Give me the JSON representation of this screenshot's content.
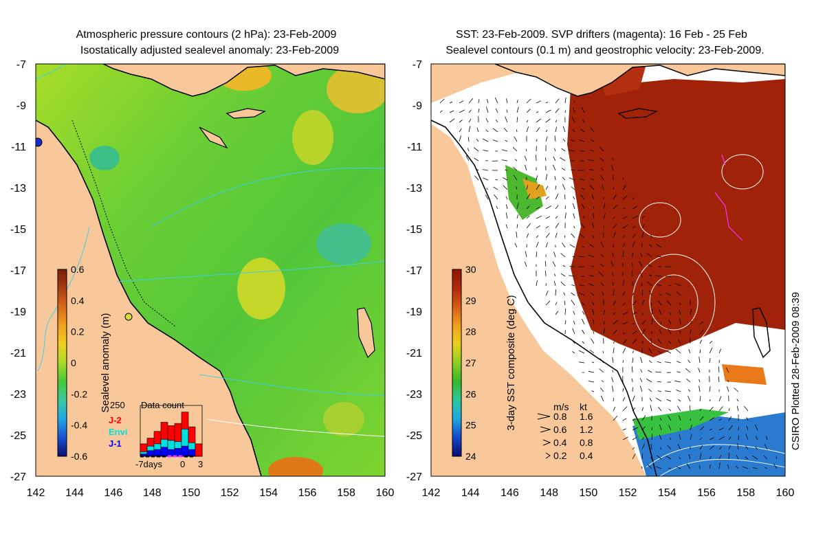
{
  "left_panel": {
    "title_line1": "Atmospheric pressure contours (2 hPa): 23-Feb-2009",
    "title_line2": "Isostatically adjusted sealevel anomaly: 23-Feb-2009",
    "colorbar": {
      "label": "Sealevel anomaly (m)",
      "ticks": [
        "0.6",
        "0.4",
        "0.2",
        "0",
        "-0.2",
        "-0.4",
        "-0.6"
      ],
      "colors": [
        "#08106e",
        "#1a4fd0",
        "#20a8e8",
        "#3cc8a0",
        "#46c83a",
        "#a8dc28",
        "#f0d020",
        "#f0a020",
        "#d86a1a",
        "#a83c10",
        "#7a1e08"
      ]
    },
    "inset": {
      "title": "Data count",
      "ymax_label": "250",
      "x_left": "-7days",
      "x_mid": "0",
      "x_right": "3",
      "legend": [
        {
          "label": "J-2",
          "color": "#ff0000"
        },
        {
          "label": "Envi",
          "color": "#00e0e0"
        },
        {
          "label": "J-1",
          "color": "#0000ff"
        }
      ],
      "counts": [
        {
          "red": 55,
          "cyan": 20,
          "blue": 10
        },
        {
          "red": 80,
          "cyan": 45,
          "blue": 25
        },
        {
          "red": 110,
          "cyan": 55,
          "blue": 30
        },
        {
          "red": 150,
          "cyan": 75,
          "blue": 40
        },
        {
          "red": 135,
          "cyan": 70,
          "blue": 30
        },
        {
          "red": 145,
          "cyan": 65,
          "blue": 35
        },
        {
          "red": 195,
          "cyan": 120,
          "blue": 45
        },
        {
          "red": 130,
          "cyan": 60,
          "blue": 30
        },
        {
          "red": 55,
          "cyan": 0,
          "blue": 0
        }
      ]
    }
  },
  "right_panel": {
    "title_line1": "SST: 23-Feb-2009. SVP drifters (magenta): 16 Feb - 25 Feb",
    "title_line2": "Sealevel contours (0.1 m) and geostrophic velocity: 23-Feb-2009.",
    "colorbar": {
      "label": "3-day SST composite (deg C)",
      "ticks": [
        "30",
        "29",
        "28",
        "27",
        "26",
        "25",
        "24"
      ],
      "colors": [
        "#0a0a70",
        "#1446c8",
        "#1ea8e0",
        "#2cc8a0",
        "#36b828",
        "#8ad020",
        "#e8d020",
        "#f0a020",
        "#d85a14",
        "#b02a0a",
        "#8c1404"
      ]
    },
    "speed_legend": {
      "header_ms": "m/s",
      "header_kt": "kt",
      "rows": [
        {
          "ms": "0.8",
          "kt": "1.6"
        },
        {
          "ms": "0.6",
          "kt": "1.2"
        },
        {
          "ms": "0.4",
          "kt": "0.8"
        },
        {
          "ms": "0.2",
          "kt": "0.4"
        }
      ]
    }
  },
  "axes": {
    "lon_labels": [
      "142",
      "144",
      "146",
      "148",
      "150",
      "152",
      "154",
      "156",
      "158",
      "160"
    ],
    "lat_labels": [
      "-7",
      "-9",
      "-11",
      "-13",
      "-15",
      "-17",
      "-19",
      "-21",
      "-23",
      "-25",
      "-27"
    ]
  },
  "credit": "CSIRO Plotted 28-Feb-2009 08:39",
  "colors": {
    "land": "#f9c89a",
    "coast": "#000000",
    "pressure_contour": "#40d0e0",
    "sst_contour": "#ffffff"
  }
}
